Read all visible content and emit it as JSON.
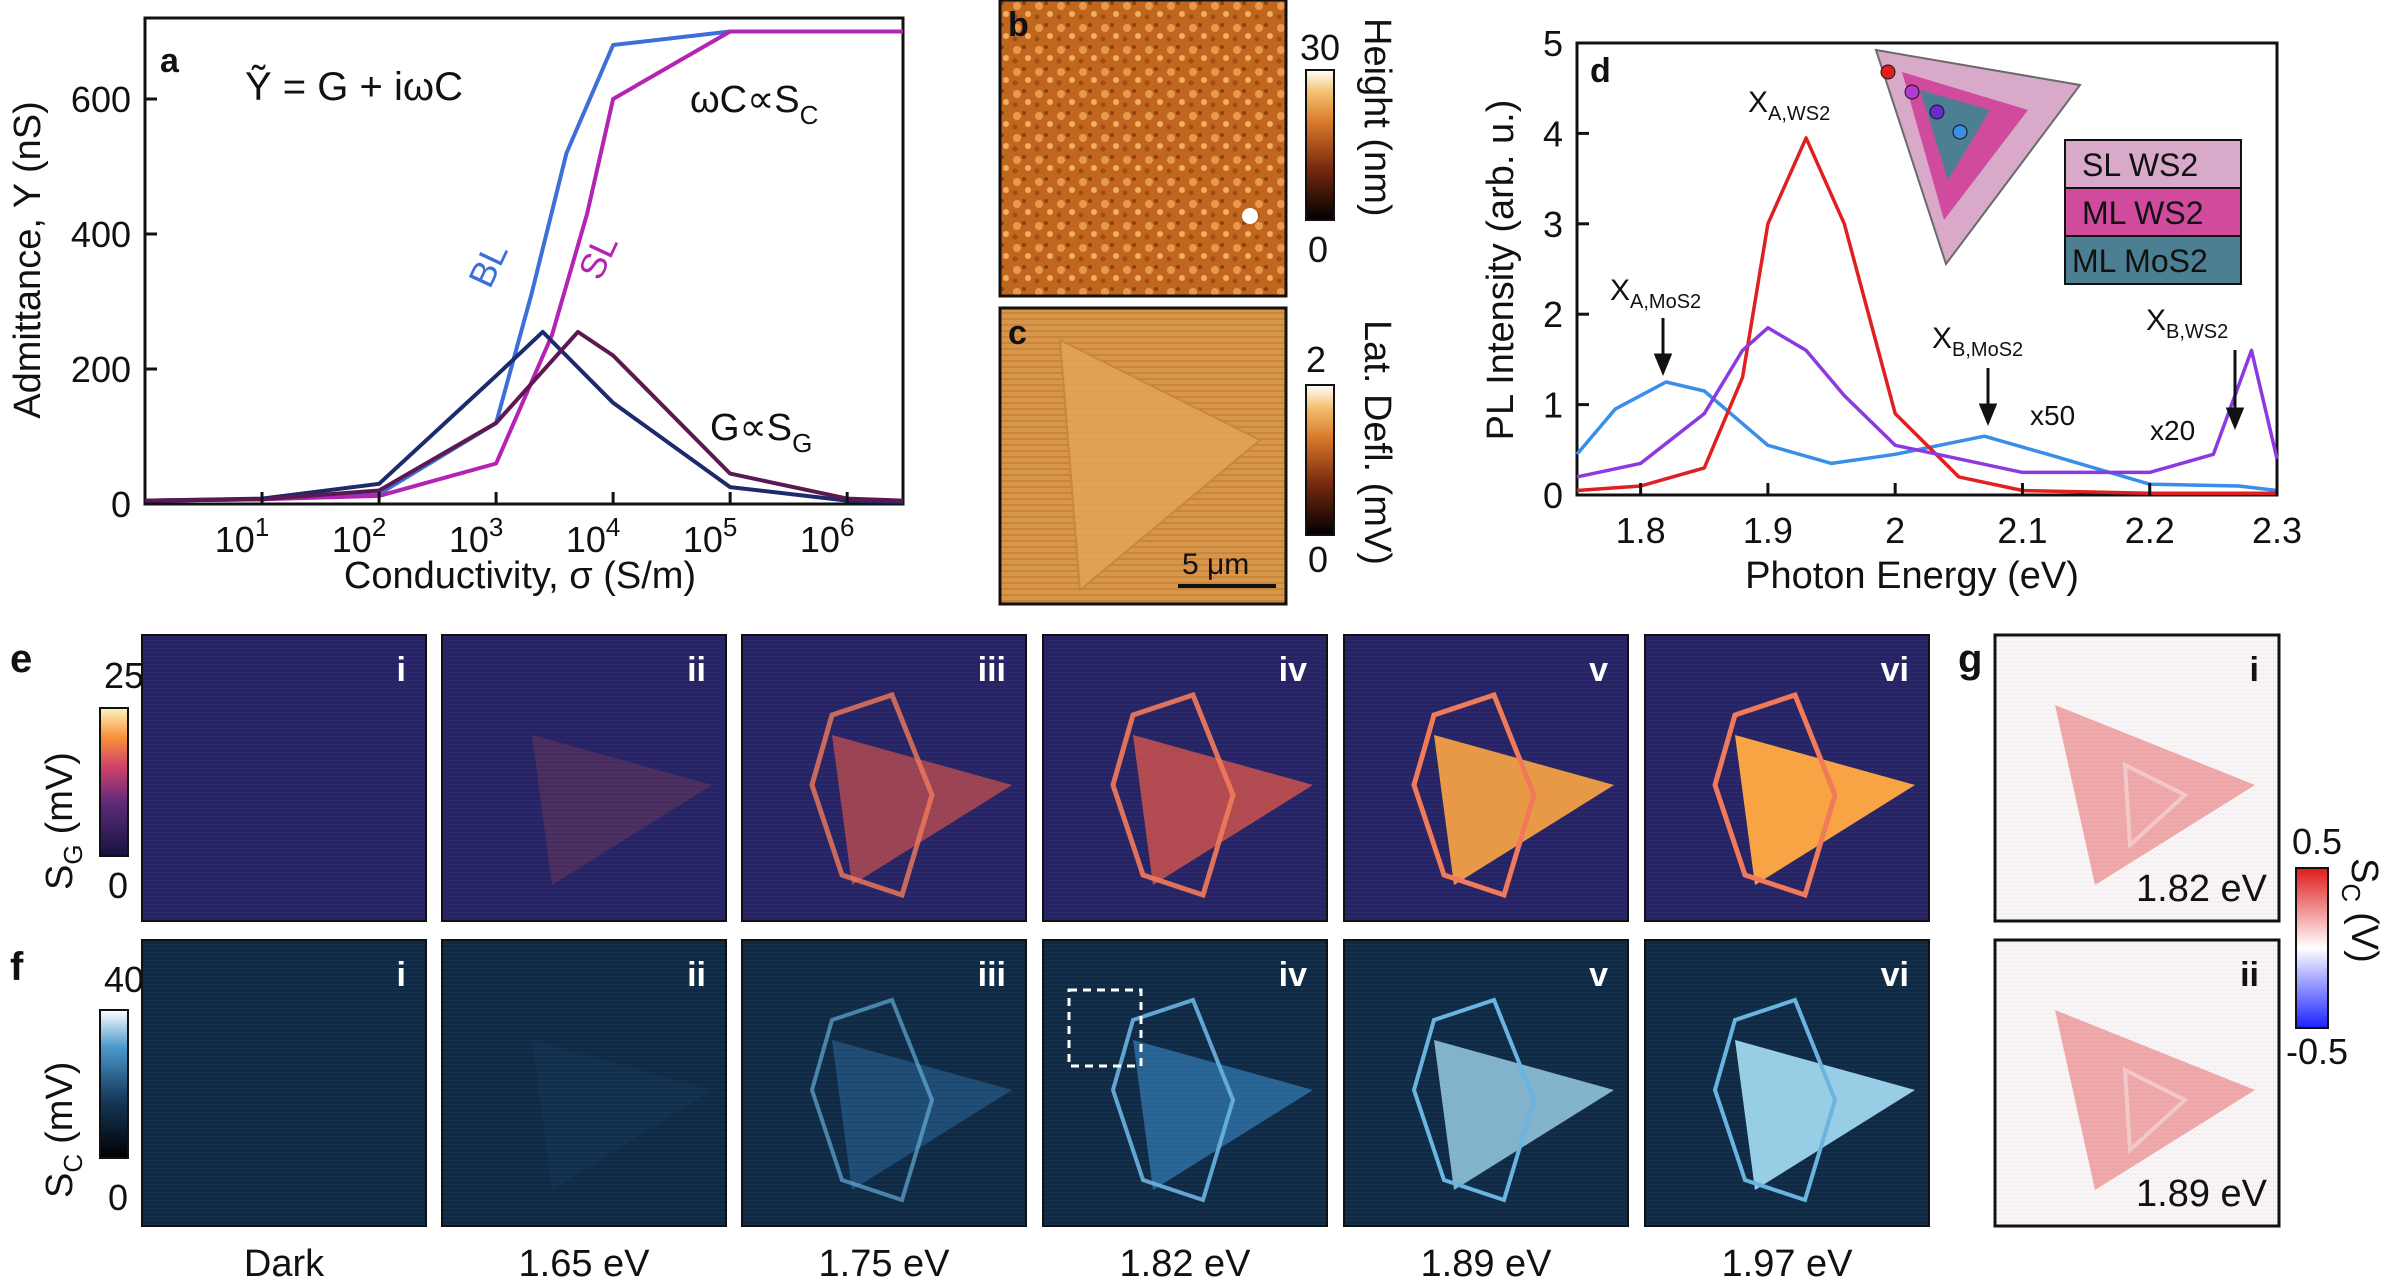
{
  "panel_a": {
    "label": "a",
    "equation": "Ỹ = G + iωC",
    "curve_label_bl": "BL",
    "curve_label_sl": "SL",
    "annot_capacitive": "ωC∝S",
    "annot_capacitive_sub": "C",
    "annot_conductive": "G∝S",
    "annot_conductive_sub": "G",
    "ylabel": "Admittance, Y (nS)",
    "xlabel": "Conductivity, σ (S/m)",
    "y_ticks": [
      "0",
      "200",
      "400",
      "600"
    ],
    "x_ticks": [
      {
        "base": "10",
        "exp": "1"
      },
      {
        "base": "10",
        "exp": "2"
      },
      {
        "base": "10",
        "exp": "3"
      },
      {
        "base": "10",
        "exp": "4"
      },
      {
        "base": "10",
        "exp": "5"
      },
      {
        "base": "10",
        "exp": "6"
      }
    ],
    "colors": {
      "bl": "#3d6fd8",
      "sl": "#b424b4",
      "g_bl": "#1d2a6b",
      "g_sl": "#5c1850"
    }
  },
  "chart_data": [
    {
      "type": "line",
      "xlabel": "Conductivity, σ (S/m)",
      "ylabel": "Admittance, Y (nS)",
      "xscale": "log",
      "xlim": [
        1,
        3000000
      ],
      "ylim": [
        0,
        720
      ],
      "series": [
        {
          "name": "BL",
          "x": [
            1,
            10,
            100,
            1000,
            2000,
            4000,
            10000,
            100000,
            1000000,
            3000000
          ],
          "y": [
            5,
            7,
            15,
            120,
            310,
            520,
            680,
            700,
            700,
            700
          ]
        },
        {
          "name": "SL",
          "x": [
            1,
            10,
            100,
            1000,
            3000,
            6000,
            10000,
            100000,
            1000000,
            3000000
          ],
          "y": [
            5,
            7,
            12,
            60,
            250,
            430,
            600,
            700,
            700,
            700
          ]
        },
        {
          "x": [
            1,
            10,
            100,
            1000,
            2500,
            10000,
            100000,
            1000000,
            3000000
          ],
          "y": [
            5,
            8,
            30,
            190,
            255,
            150,
            25,
            5,
            3
          ]
        },
        {
          "x": [
            1,
            10,
            100,
            1000,
            5000,
            10000,
            100000,
            1000000,
            3000000
          ],
          "y": [
            5,
            7,
            20,
            120,
            255,
            220,
            45,
            8,
            5
          ]
        }
      ]
    },
    {
      "type": "line",
      "xlabel": "Photon Energy (eV)",
      "ylabel": "PL Intensity (arb. u.)",
      "xlim": [
        1.75,
        2.3
      ],
      "ylim": [
        0,
        5
      ],
      "series": [
        {
          "name": "ML MoS2",
          "x": [
            1.75,
            1.78,
            1.82,
            1.85,
            1.9,
            1.95,
            2.0,
            2.07,
            2.12,
            2.2,
            2.27,
            2.3
          ],
          "y": [
            0.45,
            0.95,
            1.25,
            1.15,
            0.55,
            0.35,
            0.45,
            0.65,
            0.45,
            0.12,
            0.1,
            0.05
          ]
        },
        {
          "name": "SL WS2",
          "x": [
            1.75,
            1.8,
            1.85,
            1.88,
            1.9,
            1.93,
            1.96,
            2.0,
            2.05,
            2.1,
            2.2,
            2.3
          ],
          "y": [
            0.05,
            0.1,
            0.3,
            1.3,
            3.0,
            3.95,
            3.0,
            0.9,
            0.2,
            0.05,
            0.02,
            0.02
          ]
        },
        {
          "name": "ML WS2",
          "x": [
            1.75,
            1.8,
            1.85,
            1.88,
            1.9,
            1.93,
            1.96,
            2.0,
            2.1,
            2.2,
            2.25,
            2.28,
            2.3
          ],
          "y": [
            0.2,
            0.35,
            0.9,
            1.6,
            1.85,
            1.6,
            1.1,
            0.55,
            0.25,
            0.25,
            0.45,
            1.6,
            0.4
          ]
        }
      ],
      "annotations": [
        {
          "text": "x50",
          "x": 2.12,
          "y": 0.75
        },
        {
          "text": "x20",
          "x": 2.23,
          "y": 0.65
        }
      ]
    }
  ],
  "panel_b": {
    "label": "b",
    "cbar_max": "30",
    "cbar_min": "0",
    "cbar_title": "Height (nm)"
  },
  "panel_c": {
    "label": "c",
    "cbar_max": "2",
    "cbar_min": "0",
    "cbar_title": "Lat. Defl. (mV)",
    "scalebar": "5 μm"
  },
  "panel_d": {
    "label": "d",
    "ylabel": "PL Intensity (arb. u.)",
    "xlabel": "Photon Energy (eV)",
    "x_ticks": [
      "1.8",
      "1.9",
      "2",
      "2.1",
      "2.2",
      "2.3"
    ],
    "y_ticks": [
      "0",
      "1",
      "2",
      "3",
      "4",
      "5"
    ],
    "peak_xa_ws2": {
      "main": "X",
      "sub": "A,WS2"
    },
    "peak_xa_mos2": {
      "main": "X",
      "sub": "A,MoS2"
    },
    "peak_xb_mos2": {
      "main": "X",
      "sub": "B,MoS2"
    },
    "peak_xb_ws2": {
      "main": "X",
      "sub": "B,WS2"
    },
    "mult_50": "x50",
    "mult_20": "x20",
    "legend": [
      {
        "label": "SL WS2",
        "color": "#d9a9c9"
      },
      {
        "label": "ML WS2",
        "color": "#d04a9e"
      },
      {
        "label": "ML MoS2",
        "color": "#4d7f93"
      }
    ],
    "colors": {
      "mos2": "#3a8ee8",
      "ws2_sl": "#e02020",
      "ws2_ml": "#8a3ae0",
      "ws2_ml2": "#b23ad0"
    }
  },
  "panel_e": {
    "label": "e",
    "cbar_title_main": "S",
    "cbar_title_sub": "G",
    "cbar_title_unit": "(mV)",
    "cbar_max": "25",
    "cbar_min": "0",
    "maps": [
      "i",
      "ii",
      "iii",
      "iv",
      "v",
      "vi"
    ]
  },
  "panel_f": {
    "label": "f",
    "cbar_title_main": "S",
    "cbar_title_sub": "C",
    "cbar_title_unit": "(mV)",
    "cbar_max": "40",
    "cbar_min": "0",
    "maps": [
      "i",
      "ii",
      "iii",
      "iv",
      "v",
      "vi"
    ]
  },
  "energies": [
    "Dark",
    "1.65 eV",
    "1.75 eV",
    "1.82 eV",
    "1.89 eV",
    "1.97 eV"
  ],
  "panel_g": {
    "label": "g",
    "maps": [
      {
        "num": "i",
        "energy": "1.82 eV"
      },
      {
        "num": "ii",
        "energy": "1.89 eV"
      }
    ],
    "cbar_max": "0.5",
    "cbar_min": "-0.5",
    "cbar_title_main": "S",
    "cbar_title_sub": "C",
    "cbar_title_unit": "(V)"
  }
}
